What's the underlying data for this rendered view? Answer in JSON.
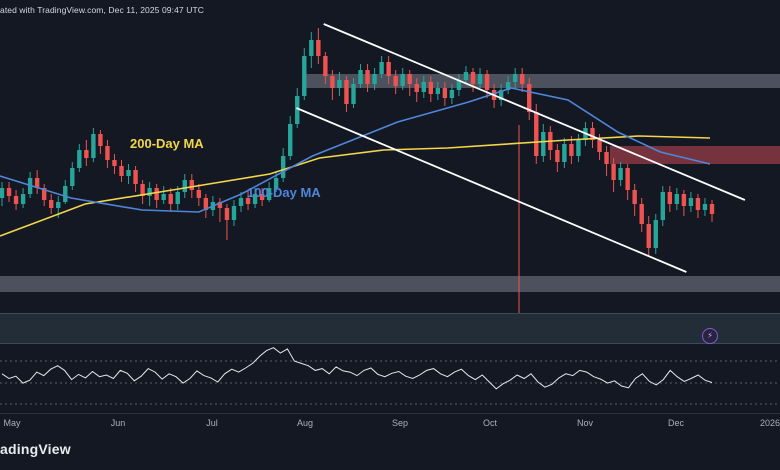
{
  "header": {
    "published_text": "ated with TradingView.com, Dec 11, 2025 09:47 UTC"
  },
  "footer": {
    "brand_text": "adingView"
  },
  "badges": {
    "bolt_icon": "lightning-icon"
  },
  "colors": {
    "background": "#141823",
    "up": "#26a69a",
    "down": "#ef5350",
    "ma200": "#f2d64b",
    "ma100": "#4f86d9",
    "trendline": "#ffffff",
    "zone_gray": "#9aa1ad",
    "zone_red": "#c64b53",
    "axis_text": "#aab0bb"
  },
  "chart_data": [
    {
      "type": "candlestick",
      "title": "",
      "xlabel": "",
      "ylabel": "",
      "x_tick_labels": [
        "May",
        "Jun",
        "Jul",
        "Aug",
        "Sep",
        "Oct",
        "Nov",
        "Dec",
        "2026"
      ],
      "annotations": [
        {
          "name": "200-day-ma-label",
          "text": "200-Day MA"
        },
        {
          "name": "100-day-ma-label",
          "text": "100-Day MA"
        }
      ],
      "indicators": [
        {
          "name": "200-Day MA",
          "points": [
            [
              0,
              0.12
            ],
            [
              0.12,
              0.28
            ],
            [
              0.26,
              0.36
            ],
            [
              0.38,
              0.43
            ],
            [
              0.45,
              0.51
            ],
            [
              0.54,
              0.55
            ],
            [
              0.63,
              0.56
            ],
            [
              0.8,
              0.6
            ],
            [
              0.9,
              0.62
            ],
            [
              1,
              0.61
            ]
          ]
        },
        {
          "name": "100-Day MA",
          "points": [
            [
              0,
              0.42
            ],
            [
              0.1,
              0.31
            ],
            [
              0.2,
              0.25
            ],
            [
              0.28,
              0.24
            ],
            [
              0.34,
              0.33
            ],
            [
              0.44,
              0.52
            ],
            [
              0.56,
              0.69
            ],
            [
              0.66,
              0.79
            ],
            [
              0.72,
              0.86
            ],
            [
              0.8,
              0.8
            ],
            [
              0.87,
              0.64
            ],
            [
              0.93,
              0.54
            ],
            [
              1,
              0.48
            ]
          ]
        }
      ],
      "zones": [
        {
          "type": "resistance",
          "color": "gray",
          "range": [
            0.86,
            0.93
          ]
        },
        {
          "type": "resistance",
          "color": "red",
          "range": [
            0.48,
            0.57
          ]
        },
        {
          "type": "support",
          "color": "gray",
          "range": [
            -0.16,
            -0.08
          ]
        }
      ],
      "channel": {
        "upper": [
          [
            0.415,
            1.18
          ],
          [
            0.955,
            0.3
          ]
        ],
        "lower": [
          [
            0.38,
            0.76
          ],
          [
            0.88,
            -0.06
          ]
        ]
      },
      "series": [
        {
          "name": "",
          "candles": [
            [
              0.31,
              0.36,
              0.27,
              0.39
            ],
            [
              0.36,
              0.32,
              0.29,
              0.39
            ],
            [
              0.32,
              0.28,
              0.25,
              0.35
            ],
            [
              0.28,
              0.33,
              0.26,
              0.36
            ],
            [
              0.33,
              0.41,
              0.31,
              0.44
            ],
            [
              0.41,
              0.36,
              0.33,
              0.45
            ],
            [
              0.36,
              0.3,
              0.27,
              0.38
            ],
            [
              0.3,
              0.26,
              0.23,
              0.33
            ],
            [
              0.26,
              0.29,
              0.21,
              0.32
            ],
            [
              0.29,
              0.37,
              0.28,
              0.4
            ],
            [
              0.37,
              0.46,
              0.35,
              0.49
            ],
            [
              0.46,
              0.55,
              0.44,
              0.58
            ],
            [
              0.55,
              0.51,
              0.47,
              0.6
            ],
            [
              0.51,
              0.63,
              0.49,
              0.66
            ],
            [
              0.63,
              0.57,
              0.53,
              0.65
            ],
            [
              0.57,
              0.5,
              0.46,
              0.6
            ],
            [
              0.5,
              0.47,
              0.43,
              0.53
            ],
            [
              0.47,
              0.42,
              0.39,
              0.5
            ],
            [
              0.42,
              0.45,
              0.38,
              0.48
            ],
            [
              0.45,
              0.38,
              0.34,
              0.47
            ],
            [
              0.38,
              0.32,
              0.28,
              0.4
            ],
            [
              0.32,
              0.36,
              0.27,
              0.39
            ],
            [
              0.36,
              0.3,
              0.26,
              0.38
            ],
            [
              0.3,
              0.33,
              0.28,
              0.37
            ],
            [
              0.33,
              0.28,
              0.24,
              0.36
            ],
            [
              0.28,
              0.34,
              0.25,
              0.37
            ],
            [
              0.34,
              0.4,
              0.31,
              0.43
            ],
            [
              0.4,
              0.35,
              0.31,
              0.43
            ],
            [
              0.35,
              0.31,
              0.27,
              0.38
            ],
            [
              0.31,
              0.25,
              0.21,
              0.33
            ],
            [
              0.25,
              0.29,
              0.22,
              0.32
            ],
            [
              0.29,
              0.26,
              0.19,
              0.31
            ],
            [
              0.26,
              0.2,
              0.1,
              0.28
            ],
            [
              0.2,
              0.27,
              0.17,
              0.3
            ],
            [
              0.27,
              0.31,
              0.24,
              0.34
            ],
            [
              0.31,
              0.28,
              0.25,
              0.35
            ],
            [
              0.28,
              0.33,
              0.26,
              0.36
            ],
            [
              0.33,
              0.3,
              0.27,
              0.36
            ],
            [
              0.3,
              0.36,
              0.29,
              0.39
            ],
            [
              0.36,
              0.41,
              0.34,
              0.44
            ],
            [
              0.41,
              0.52,
              0.39,
              0.56
            ],
            [
              0.52,
              0.68,
              0.5,
              0.72
            ],
            [
              0.68,
              0.82,
              0.66,
              0.86
            ],
            [
              0.82,
              1.02,
              0.8,
              1.06
            ],
            [
              1.02,
              1.1,
              0.96,
              1.14
            ],
            [
              1.1,
              1.02,
              0.98,
              1.16
            ],
            [
              1.02,
              0.92,
              0.88,
              1.04
            ],
            [
              0.92,
              0.86,
              0.8,
              0.95
            ],
            [
              0.86,
              0.9,
              0.82,
              0.94
            ],
            [
              0.9,
              0.78,
              0.74,
              0.92
            ],
            [
              0.78,
              0.88,
              0.76,
              0.91
            ],
            [
              0.88,
              0.95,
              0.86,
              0.98
            ],
            [
              0.95,
              0.88,
              0.84,
              0.98
            ],
            [
              0.88,
              0.93,
              0.85,
              0.96
            ],
            [
              0.93,
              0.99,
              0.91,
              1.02
            ],
            [
              0.99,
              0.92,
              0.88,
              1.02
            ],
            [
              0.92,
              0.87,
              0.83,
              0.95
            ],
            [
              0.87,
              0.93,
              0.85,
              0.96
            ],
            [
              0.93,
              0.88,
              0.82,
              0.95
            ],
            [
              0.88,
              0.84,
              0.79,
              0.91
            ],
            [
              0.84,
              0.89,
              0.81,
              0.92
            ],
            [
              0.89,
              0.83,
              0.79,
              0.92
            ],
            [
              0.83,
              0.86,
              0.8,
              0.89
            ],
            [
              0.86,
              0.81,
              0.77,
              0.89
            ],
            [
              0.81,
              0.85,
              0.78,
              0.88
            ],
            [
              0.85,
              0.9,
              0.82,
              0.93
            ],
            [
              0.9,
              0.94,
              0.88,
              0.97
            ],
            [
              0.94,
              0.88,
              0.84,
              0.96
            ],
            [
              0.88,
              0.93,
              0.86,
              0.96
            ],
            [
              0.93,
              0.85,
              0.81,
              0.95
            ],
            [
              0.85,
              0.8,
              0.76,
              0.88
            ],
            [
              0.8,
              0.85,
              0.77,
              0.88
            ],
            [
              0.85,
              0.89,
              0.83,
              0.92
            ],
            [
              0.89,
              0.93,
              0.86,
              0.96
            ],
            [
              0.93,
              0.88,
              0.84,
              0.96
            ],
            [
              0.88,
              0.74,
              0.7,
              0.91
            ],
            [
              0.74,
              0.52,
              0.48,
              0.78
            ],
            [
              0.52,
              0.64,
              0.49,
              0.68
            ],
            [
              0.64,
              0.55,
              0.5,
              0.67
            ],
            [
              0.55,
              0.49,
              0.44,
              0.58
            ],
            [
              0.49,
              0.58,
              0.46,
              0.61
            ],
            [
              0.58,
              0.52,
              0.48,
              0.62
            ],
            [
              0.52,
              0.6,
              0.49,
              0.63
            ],
            [
              0.6,
              0.66,
              0.57,
              0.69
            ],
            [
              0.66,
              0.6,
              0.56,
              0.69
            ],
            [
              0.6,
              0.54,
              0.5,
              0.63
            ],
            [
              0.54,
              0.48,
              0.42,
              0.57
            ],
            [
              0.48,
              0.4,
              0.34,
              0.51
            ],
            [
              0.4,
              0.46,
              0.37,
              0.49
            ],
            [
              0.46,
              0.35,
              0.3,
              0.48
            ],
            [
              0.35,
              0.28,
              0.22,
              0.38
            ],
            [
              0.28,
              0.18,
              0.14,
              0.31
            ],
            [
              0.18,
              0.06,
              0.02,
              0.22
            ],
            [
              0.06,
              0.2,
              0.03,
              0.23
            ],
            [
              0.2,
              0.34,
              0.17,
              0.37
            ],
            [
              0.34,
              0.28,
              0.24,
              0.37
            ],
            [
              0.28,
              0.33,
              0.25,
              0.36
            ],
            [
              0.33,
              0.27,
              0.22,
              0.35
            ],
            [
              0.27,
              0.31,
              0.24,
              0.34
            ],
            [
              0.31,
              0.25,
              0.21,
              0.33
            ],
            [
              0.25,
              0.28,
              0.22,
              0.31
            ],
            [
              0.28,
              0.23,
              0.19,
              0.3
            ]
          ]
        }
      ]
    },
    {
      "type": "line",
      "title": "",
      "ylim": [
        0,
        100
      ],
      "series": [
        {
          "name": "",
          "values": [
            52,
            44,
            48,
            36,
            41,
            55,
            49,
            60,
            66,
            58,
            42,
            51,
            45,
            56,
            47,
            50,
            44,
            58,
            53,
            40,
            48,
            61,
            55,
            43,
            52,
            47,
            36,
            44,
            57,
            49,
            45,
            38,
            52,
            60,
            55,
            62,
            70,
            82,
            92,
            97,
            88,
            95,
            74,
            70,
            66,
            58,
            61,
            52,
            64,
            57,
            55,
            49,
            58,
            62,
            51,
            47,
            53,
            56,
            48,
            44,
            50,
            58,
            61,
            52,
            47,
            55,
            60,
            49,
            42,
            50,
            38,
            26,
            35,
            41,
            50,
            44,
            52,
            38,
            29,
            34,
            45,
            52,
            49,
            58,
            55,
            47,
            43,
            36,
            40,
            31,
            28,
            44,
            52,
            39,
            33,
            42,
            58,
            47,
            39,
            44,
            50,
            41,
            37
          ]
        }
      ]
    }
  ]
}
